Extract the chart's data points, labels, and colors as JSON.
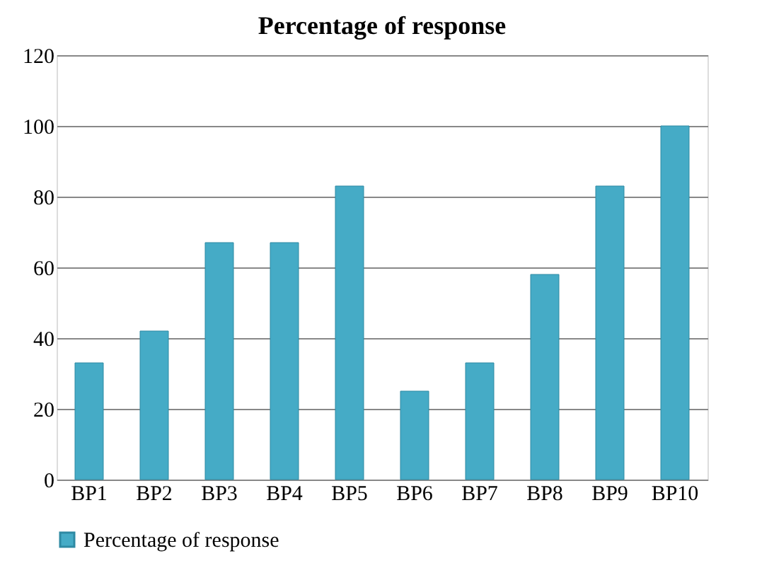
{
  "chart_data": {
    "type": "bar",
    "title": "Percentage of response",
    "categories": [
      "BP1",
      "BP2",
      "BP3",
      "BP4",
      "BP5",
      "BP6",
      "BP7",
      "BP8",
      "BP9",
      "BP10"
    ],
    "series": [
      {
        "name": "Percentage of response",
        "color": "#45abc6",
        "values": [
          33,
          42,
          67,
          67,
          83,
          25,
          33,
          58,
          83,
          100
        ]
      }
    ],
    "ylim": [
      0,
      120
    ],
    "yticks": [
      0,
      20,
      40,
      60,
      80,
      100,
      120
    ],
    "grid": "y",
    "legend": "bottom"
  }
}
